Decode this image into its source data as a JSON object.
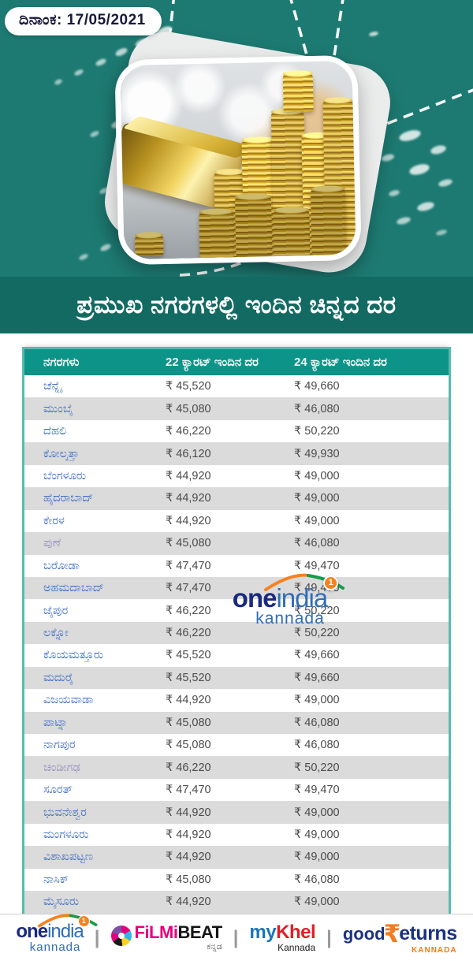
{
  "date_badge": {
    "label": "ದಿನಾಂಕ: 17/05/2021"
  },
  "title": "ಪ್ರಮುಖ ನಗರಗಳಲ್ಲಿ ಇಂದಿನ ಚಿನ್ನದ ದರ",
  "table": {
    "columns": [
      "ನಗರಗಳು",
      "22 ಕ್ಯಾರಟ್ ಇಂದಿನ ದರ",
      "24 ಕ್ಯಾರಟ್ ಇಂದಿನ ದರ"
    ],
    "rows": [
      {
        "city": "ಚೆನ್ನೈ",
        "rate22": "₹ 45,520",
        "rate24": "₹ 49,660",
        "visited": false
      },
      {
        "city": "ಮುಂಬೈ",
        "rate22": "₹ 45,080",
        "rate24": "₹ 46,080",
        "visited": false
      },
      {
        "city": "ದೆಹಲಿ",
        "rate22": "₹ 46,220",
        "rate24": "₹ 50,220",
        "visited": false
      },
      {
        "city": "ಕೋಲ್ಕತ್ತಾ",
        "rate22": "₹ 46,120",
        "rate24": "₹ 49,930",
        "visited": false
      },
      {
        "city": "ಬೆಂಗಳೂರು",
        "rate22": "₹ 44,920",
        "rate24": "₹ 49,000",
        "visited": false
      },
      {
        "city": "ಹೈದರಾಬಾದ್",
        "rate22": "₹ 44,920",
        "rate24": "₹ 49,000",
        "visited": false
      },
      {
        "city": "ಕೇರಳ",
        "rate22": "₹ 44,920",
        "rate24": "₹ 49,000",
        "visited": false
      },
      {
        "city": "ಪುಣೆ",
        "rate22": "₹ 45,080",
        "rate24": "₹ 46,080",
        "visited": true
      },
      {
        "city": "ಬರೋಡಾ",
        "rate22": "₹ 47,470",
        "rate24": "₹ 49,470",
        "visited": false
      },
      {
        "city": "ಅಹಮದಾಬಾದ್",
        "rate22": "₹ 47,470",
        "rate24": "₹ 49,470",
        "visited": false
      },
      {
        "city": "ಜೈಪುರ",
        "rate22": "₹ 46,220",
        "rate24": "₹ 50,220",
        "visited": false
      },
      {
        "city": "ಲಕ್ನೋ",
        "rate22": "₹ 46,220",
        "rate24": "₹ 50,220",
        "visited": false
      },
      {
        "city": "ಕೊಯಮತ್ತೂರು",
        "rate22": "₹ 45,520",
        "rate24": "₹ 49,660",
        "visited": false
      },
      {
        "city": "ಮದುರೈ",
        "rate22": "₹ 45,520",
        "rate24": "₹ 49,660",
        "visited": false
      },
      {
        "city": "ವಿಜಯವಾಡಾ",
        "rate22": "₹ 44,920",
        "rate24": "₹ 49,000",
        "visited": false
      },
      {
        "city": "ಪಾಟ್ನಾ",
        "rate22": "₹ 45,080",
        "rate24": "₹ 46,080",
        "visited": false
      },
      {
        "city": "ನಾಗಪುರ",
        "rate22": "₹ 45,080",
        "rate24": "₹ 46,080",
        "visited": false
      },
      {
        "city": "ಚಂಡೀಗಢ",
        "rate22": "₹ 46,220",
        "rate24": "₹ 50,220",
        "visited": true
      },
      {
        "city": "ಸೂರತ್",
        "rate22": "₹ 47,470",
        "rate24": "₹ 49,470",
        "visited": false
      },
      {
        "city": "ಭುವನೇಶ್ವರ",
        "rate22": "₹ 44,920",
        "rate24": "₹ 49,000",
        "visited": false
      },
      {
        "city": "ಮಂಗಳೂರು",
        "rate22": "₹ 44,920",
        "rate24": "₹ 49,000",
        "visited": false
      },
      {
        "city": "ವಿಶಾಖಪಟ್ಟಣ",
        "rate22": "₹ 44,920",
        "rate24": "₹ 49,000",
        "visited": false
      },
      {
        "city": "ನಾಸಿಕ್",
        "rate22": "₹ 45,080",
        "rate24": "₹ 46,080",
        "visited": false
      },
      {
        "city": "ಮೈಸೂರು",
        "rate22": "₹ 44,920",
        "rate24": "₹ 49,000",
        "visited": false
      }
    ]
  },
  "watermark": {
    "one": "one",
    "india": "india",
    "badge": "1",
    "kannada": "kannada"
  },
  "footer": {
    "separator": "|",
    "oneindia": {
      "one": "one",
      "india": "india",
      "badge": "1",
      "sub": "kannada"
    },
    "filmibeat": {
      "filmi": "FiLMi",
      "beat": "BEAT",
      "sub": "ಕನ್ನಡ"
    },
    "mykhel": {
      "my": "my",
      "khel": "Khel",
      "sub": "Kannada"
    },
    "goodreturns": {
      "good": "good",
      "rupee": "₹",
      "eturns": "eturns",
      "sub": "KANNADA"
    }
  },
  "colors": {
    "hero_teal": "#1d7a72",
    "title_band_teal": "#136a62",
    "table_header_teal": "#0d9488",
    "table_border_teal": "#57bbb0",
    "row_stripe_gray": "#dbdbdb",
    "city_link_blue": "#4472c4",
    "city_visited_purple": "#9693bf",
    "value_gray": "#4b4b4b",
    "oneindia_navy": "#1b2a80",
    "oneindia_blue": "#2f6db8",
    "badge_orange": "#f58220",
    "filmibeat_pink": "#e5007d",
    "mykhel_blue": "#1c75bc",
    "mykhel_red": "#e31e24",
    "goodreturns_navy": "#1b3281",
    "goodreturns_orange": "#f47b20"
  }
}
